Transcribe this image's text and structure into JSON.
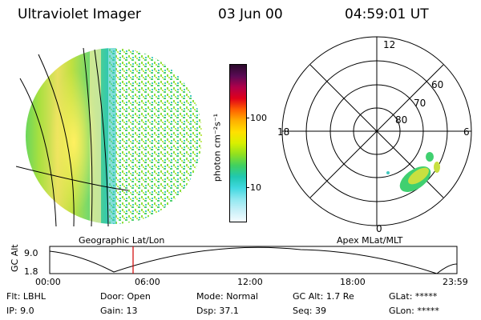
{
  "header": {
    "title": "Ultraviolet Imager",
    "date": "03 Jun 00",
    "time": "04:59:01 UT"
  },
  "colorbar": {
    "unit_label": "photon cm⁻²s⁻¹",
    "ticks": [
      "100",
      "10"
    ],
    "colors": [
      "#2a0a2a",
      "#5a0a55",
      "#b0004a",
      "#e0001a",
      "#ff6000",
      "#ffb000",
      "#ffe000",
      "#d8f000",
      "#90e020",
      "#40d060",
      "#20c8b0",
      "#40d8e0",
      "#90e8f0",
      "#c8f0f8",
      "#f4fcff"
    ]
  },
  "left_panel": {
    "caption": "Geographic Lat/Lon"
  },
  "right_panel": {
    "caption": "Apex MLat/MLT",
    "mlt_labels": {
      "top": "12",
      "left": "18",
      "right": "6",
      "bottom": "0"
    },
    "mlat_labels": [
      "60",
      "70",
      "80"
    ]
  },
  "altitude_plot": {
    "ylabel": "GC Alt",
    "yticks": [
      "9.0",
      "1.8"
    ],
    "xticks": [
      "00:00",
      "06:00",
      "12:00",
      "18:00",
      "23:59"
    ],
    "marker_time": "04:59",
    "marker_color": "#d00000"
  },
  "info": {
    "row1": [
      {
        "key": "Flt:",
        "value": "LBHL"
      },
      {
        "key": "Door:",
        "value": "Open"
      },
      {
        "key": "Mode:",
        "value": "Normal"
      },
      {
        "key": "GC Alt:",
        "value": "1.7 Re"
      },
      {
        "key": "GLat:",
        "value": "*****"
      }
    ],
    "row2": [
      {
        "key": "IP:",
        "value": "9.0"
      },
      {
        "key": "Gain:",
        "value": "13"
      },
      {
        "key": "Dsp:",
        "value": "37.1"
      },
      {
        "key": "Seq:",
        "value": "39"
      },
      {
        "key": "GLon:",
        "value": "*****"
      }
    ]
  }
}
